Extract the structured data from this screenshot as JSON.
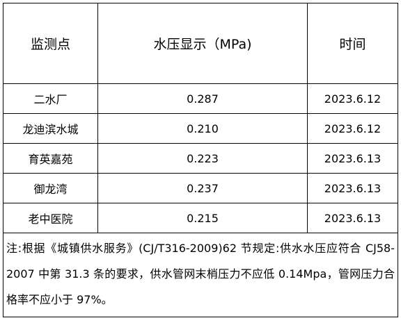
{
  "table": {
    "header": [
      "监测点",
      "水压显示（MPa)",
      "时间"
    ],
    "rows": [
      [
        "二水厂",
        "0.287",
        "2023.6.12"
      ],
      [
        "龙迪滨水城",
        "0.210",
        "2023.6.12"
      ],
      [
        "育英嘉苑",
        "0.223",
        "2023.6.13"
      ],
      [
        "御龙湾",
        "0.237",
        "2023.6.13"
      ],
      [
        "老中医院",
        "0.215",
        "2023.6.13"
      ]
    ],
    "note": "注:根据《城镇供水服务》(CJ/T316-2009)62 节规定:供水水压应符合 CJ58-2007 中第 31.3 条的要求，供水管网末梢压力不应低 0.14Mpa，管网压力合格率不应小于 97%。"
  }
}
